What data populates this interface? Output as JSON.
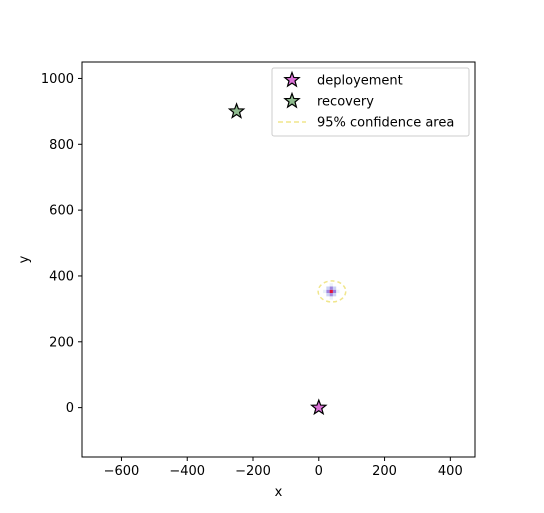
{
  "chart_data": {
    "type": "scatter",
    "xlabel": "x",
    "ylabel": "y",
    "xlim": [
      -720,
      475
    ],
    "ylim": [
      -150,
      1050
    ],
    "xticks": [
      -600,
      -400,
      -200,
      0,
      200,
      400
    ],
    "yticks": [
      0,
      200,
      400,
      600,
      800,
      1000
    ],
    "grid": false,
    "legend_position": "top-right",
    "series": [
      {
        "name": "deployement",
        "marker": "star",
        "color": "#da70d6",
        "points": [
          [
            0,
            0
          ]
        ]
      },
      {
        "name": "recovery",
        "marker": "star",
        "color": "#8fbc8f",
        "points": [
          [
            -250,
            900
          ]
        ]
      },
      {
        "name": "95% confidence area",
        "marker": "dashed-line",
        "color": "#f0e68c"
      }
    ],
    "heatmap": {
      "center": [
        38,
        353
      ],
      "cell_size": 10,
      "cells": [
        [
          28,
          353,
          0.55
        ],
        [
          38,
          353,
          1.0
        ],
        [
          48,
          353,
          0.6
        ],
        [
          38,
          363,
          0.55
        ],
        [
          38,
          343,
          0.5
        ],
        [
          28,
          363,
          0.35
        ],
        [
          48,
          363,
          0.35
        ],
        [
          28,
          343,
          0.3
        ],
        [
          48,
          343,
          0.3
        ],
        [
          18,
          353,
          0.2
        ],
        [
          58,
          353,
          0.2
        ],
        [
          38,
          373,
          0.15
        ],
        [
          38,
          333,
          0.15
        ]
      ],
      "confidence_ellipse": {
        "cx": 40,
        "cy": 353,
        "rx": 42,
        "ry": 32
      }
    }
  }
}
